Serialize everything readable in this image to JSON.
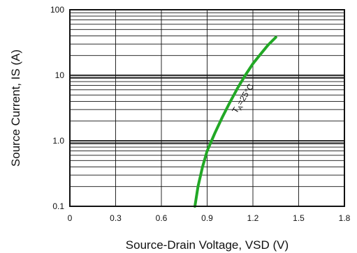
{
  "chart_data": {
    "type": "line",
    "title": "",
    "xlabel": "Source-Drain Voltage, VSD (V)",
    "ylabel": "Source Current, IS (A)",
    "xlim": [
      0,
      1.8
    ],
    "ylim": [
      0.1,
      100
    ],
    "yscale": "log",
    "grid": true,
    "x_ticks": [
      0,
      0.3,
      0.6,
      0.9,
      1.2,
      1.5,
      1.8
    ],
    "x_tick_labels": [
      "0",
      "0.3",
      "0.6",
      "0.9",
      "1.2",
      "1.5",
      "1.8"
    ],
    "y_ticks": [
      0.1,
      1.0,
      10,
      100
    ],
    "y_tick_labels": [
      "0.1",
      "1.0",
      "10",
      "100"
    ],
    "annotation": {
      "main": "T",
      "sub": "A",
      "rest": "=25°C",
      "color": "#111111"
    },
    "series": [
      {
        "color": "#22a826",
        "x": [
          0.82,
          0.84,
          0.87,
          0.9,
          0.95,
          1.0,
          1.05,
          1.1,
          1.15,
          1.2,
          1.25,
          1.3,
          1.35
        ],
        "y": [
          0.1,
          0.2,
          0.4,
          0.7,
          1.3,
          2.3,
          3.9,
          6.4,
          10,
          15,
          21,
          29,
          38
        ]
      }
    ]
  }
}
